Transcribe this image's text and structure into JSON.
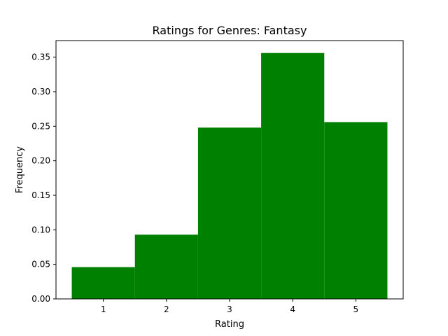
{
  "chart_data": {
    "type": "bar",
    "title": "Ratings for Genres: Fantasy",
    "xlabel": "Rating",
    "ylabel": "Frequency",
    "categories": [
      "1",
      "2",
      "3",
      "4",
      "5"
    ],
    "x": [
      1,
      2,
      3,
      4,
      5
    ],
    "values": [
      0.046,
      0.093,
      0.248,
      0.356,
      0.256
    ],
    "xlim": [
      0.25,
      5.75
    ],
    "ylim": [
      0,
      0.374
    ],
    "xticks": [
      1,
      2,
      3,
      4,
      5
    ],
    "xtick_labels": [
      "1",
      "2",
      "3",
      "4",
      "5"
    ],
    "yticks": [
      0,
      0.05,
      0.1,
      0.15,
      0.2,
      0.25,
      0.3,
      0.35
    ],
    "ytick_labels": [
      "0.00",
      "0.05",
      "0.10",
      "0.15",
      "0.20",
      "0.25",
      "0.30",
      "0.35"
    ],
    "bar_color": "#008000",
    "grid": false,
    "legend": "none"
  }
}
